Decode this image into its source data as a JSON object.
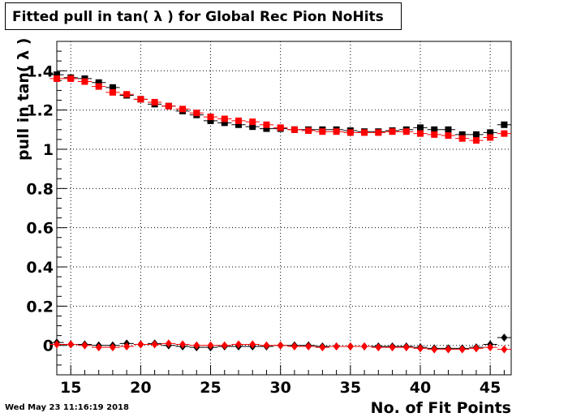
{
  "title": "Fitted pull in tan( λ ) for Global Rec Pion NoHits",
  "timestamp": "Wed May 23 11:16:19 2018",
  "chart_data": {
    "type": "scatter",
    "title": "Fitted pull in tan( λ ) for Global Rec Pion NoHits",
    "xlabel": "No. of Fit Points",
    "ylabel": "pull in tan( λ )",
    "xlim": [
      14,
      46.5
    ],
    "ylim": [
      -0.15,
      1.55
    ],
    "xticks": [
      15,
      20,
      25,
      30,
      35,
      40,
      45
    ],
    "yticks": [
      0,
      0.2,
      0.4,
      0.6,
      0.8,
      1,
      1.2,
      1.4
    ],
    "ytick_labels": [
      "0",
      "0.2",
      "0.4",
      "0.6",
      "0.8",
      "1",
      "1.2",
      "1.4"
    ],
    "grid": true,
    "x": [
      14,
      15,
      16,
      17,
      18,
      19,
      20,
      21,
      22,
      23,
      24,
      25,
      26,
      27,
      28,
      29,
      30,
      31,
      32,
      33,
      34,
      35,
      36,
      37,
      38,
      39,
      40,
      41,
      42,
      43,
      44,
      45,
      46
    ],
    "series": [
      {
        "color": "#000000",
        "marker": "square",
        "values": [
          1.38,
          1.365,
          1.36,
          1.34,
          1.315,
          1.275,
          1.255,
          1.23,
          1.22,
          1.195,
          1.175,
          1.145,
          1.135,
          1.125,
          1.115,
          1.105,
          1.105,
          1.1,
          1.1,
          1.1,
          1.1,
          1.095,
          1.09,
          1.09,
          1.095,
          1.1,
          1.11,
          1.1,
          1.1,
          1.075,
          1.075,
          1.085,
          1.125
        ]
      },
      {
        "color": "#ff0000",
        "marker": "square",
        "values": [
          1.36,
          1.36,
          1.345,
          1.32,
          1.29,
          1.28,
          1.255,
          1.24,
          1.22,
          1.205,
          1.185,
          1.165,
          1.155,
          1.145,
          1.14,
          1.125,
          1.11,
          1.1,
          1.095,
          1.09,
          1.09,
          1.085,
          1.085,
          1.085,
          1.09,
          1.09,
          1.08,
          1.075,
          1.07,
          1.055,
          1.045,
          1.06,
          1.08
        ]
      },
      {
        "color": "#000000",
        "marker": "diamond",
        "values": [
          0.015,
          0.005,
          0.005,
          0.0,
          0.0,
          0.01,
          0.005,
          0.01,
          0.0,
          -0.005,
          -0.01,
          -0.01,
          -0.005,
          -0.005,
          -0.005,
          -0.005,
          0.0,
          0.0,
          0.0,
          -0.005,
          -0.005,
          -0.005,
          -0.005,
          -0.005,
          -0.005,
          -0.005,
          -0.01,
          -0.015,
          -0.015,
          -0.015,
          -0.01,
          0.005,
          0.04
        ]
      },
      {
        "color": "#ff0000",
        "marker": "diamond",
        "values": [
          0.005,
          0.005,
          0.0,
          -0.01,
          -0.01,
          -0.005,
          0.005,
          0.005,
          0.01,
          0.005,
          0.0,
          0.0,
          0.0,
          0.005,
          0.005,
          0.0,
          0.0,
          -0.005,
          -0.005,
          -0.01,
          -0.005,
          -0.005,
          -0.005,
          -0.01,
          -0.01,
          -0.01,
          -0.015,
          -0.02,
          -0.02,
          -0.02,
          -0.015,
          -0.01,
          -0.02
        ]
      }
    ]
  }
}
